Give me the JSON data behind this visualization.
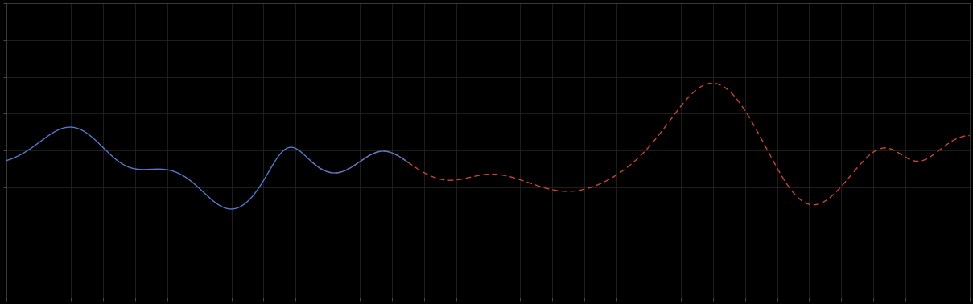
{
  "background_color": "#000000",
  "plot_bg_color": "#000000",
  "grid_color": "#2a2a2a",
  "blue_line_color": "#5577cc",
  "red_line_color": "#cc4433",
  "fig_width": 12.09,
  "fig_height": 3.78,
  "dpi": 100,
  "xlim": [
    0,
    120
  ],
  "ylim": [
    0,
    10
  ],
  "spine_color": "#444444",
  "tick_color": "#666666",
  "grid_x_spacing": 4,
  "grid_y_spacing": 1.25,
  "blue_end_x": 50,
  "red_start_x": 38
}
